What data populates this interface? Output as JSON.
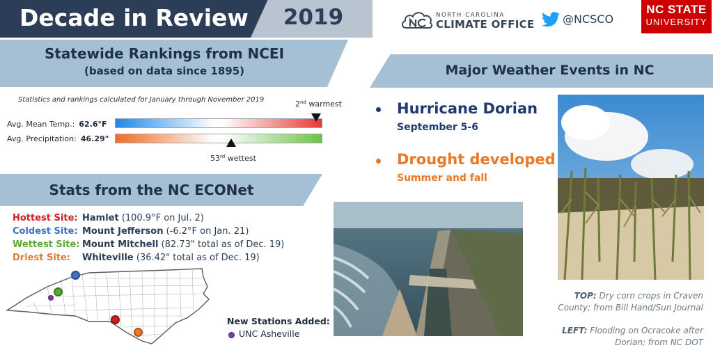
{
  "header": {
    "title": "Decade in Review",
    "year": "2019",
    "office_small": "NORTH CAROLINA",
    "office_big": "CLIMATE OFFICE",
    "twitter_handle": "@NCSCO",
    "ncsu_line1": "NC STATE",
    "ncsu_line2": "UNIVERSITY"
  },
  "rankings": {
    "title": "Statewide Rankings from NCEI",
    "subtitle": "(based on data since 1895)",
    "note": "Statistics and rankings calculated for January through November 2019",
    "temp": {
      "label": "Avg. Mean Temp.:",
      "value": "62.6°F",
      "rank_num": "2",
      "rank_sup": "nd",
      "rank_word": " warmest",
      "rank_position": 0.97
    },
    "precip": {
      "label": "Avg. Precipitation:",
      "value": "46.29\"",
      "rank_num": "53",
      "rank_sup": "rd",
      "rank_word": " wettest",
      "rank_position": 0.56
    }
  },
  "econet": {
    "title": "Stats from the NC ECONet",
    "sites": [
      {
        "label": "Hottest Site:",
        "color": "#cc1f1f",
        "name": "Hamlet",
        "detail": " (100.9°F on Jul. 2)"
      },
      {
        "label": "Coldest Site:",
        "color": "#3f6fc4",
        "name": "Mount Jefferson",
        "detail": " (-6.2°F on Jan. 21)"
      },
      {
        "label": "Wettest Site:",
        "color": "#5aaa32",
        "name": "Mount Mitchell",
        "detail": " (82.73\" total as of Dec. 19)"
      },
      {
        "label": "Driest Site:",
        "color": "#e8792a",
        "name": "Whiteville",
        "detail": " (36.42\" total as of Dec. 19)"
      }
    ],
    "new_title": "New Stations Added:",
    "new_station": "UNC Asheville"
  },
  "events": {
    "title": "Major Weather Events in NC",
    "items": [
      {
        "title": "Hurricane Dorian",
        "sub": "September 5-6",
        "color": "#1f3a72"
      },
      {
        "title": "Drought developed",
        "sub": "Summer and fall",
        "color": "#e8792a"
      }
    ]
  },
  "captions": {
    "top_label": "TOP:",
    "top_line1": " Dry corn crops in Craven",
    "top_line2": "County; from Bill Hand/Sun Journal",
    "left_label": "LEFT:",
    "left_line1": " Flooding on Ocracoke after",
    "left_line2": "Dorian; from NC DOT"
  },
  "colors": {
    "navy": "#2c3e57",
    "banner": "#a5bfd4",
    "hot": "#cc1f1f",
    "cold": "#3f6fc4",
    "wet": "#5aaa32",
    "dry": "#e8792a",
    "new_station": "#7b3fa0"
  }
}
